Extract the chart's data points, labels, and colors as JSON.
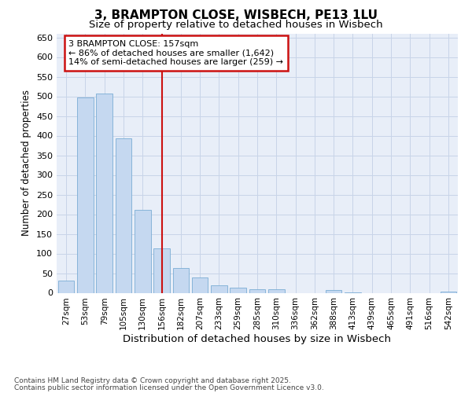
{
  "title_line1": "3, BRAMPTON CLOSE, WISBECH, PE13 1LU",
  "title_line2": "Size of property relative to detached houses in Wisbech",
  "xlabel": "Distribution of detached houses by size in Wisbech",
  "ylabel": "Number of detached properties",
  "categories": [
    "27sqm",
    "53sqm",
    "79sqm",
    "105sqm",
    "130sqm",
    "156sqm",
    "182sqm",
    "207sqm",
    "233sqm",
    "259sqm",
    "285sqm",
    "310sqm",
    "336sqm",
    "362sqm",
    "388sqm",
    "413sqm",
    "439sqm",
    "465sqm",
    "491sqm",
    "516sqm",
    "542sqm"
  ],
  "values": [
    31,
    497,
    507,
    393,
    212,
    114,
    63,
    39,
    20,
    13,
    9,
    10,
    0,
    0,
    7,
    1,
    0,
    0,
    0,
    0,
    4
  ],
  "bar_color": "#c5d8f0",
  "bar_edge_color": "#7aadd4",
  "grid_color": "#c8d4e8",
  "background_color": "#e8eef8",
  "vline_color": "#cc1111",
  "vline_index": 5,
  "annotation_text": "3 BRAMPTON CLOSE: 157sqm\n← 86% of detached houses are smaller (1,642)\n14% of semi-detached houses are larger (259) →",
  "annotation_box_color": "#cc1111",
  "ylim": [
    0,
    660
  ],
  "yticks": [
    0,
    50,
    100,
    150,
    200,
    250,
    300,
    350,
    400,
    450,
    500,
    550,
    600,
    650
  ],
  "footer_line1": "Contains HM Land Registry data © Crown copyright and database right 2025.",
  "footer_line2": "Contains public sector information licensed under the Open Government Licence v3.0."
}
